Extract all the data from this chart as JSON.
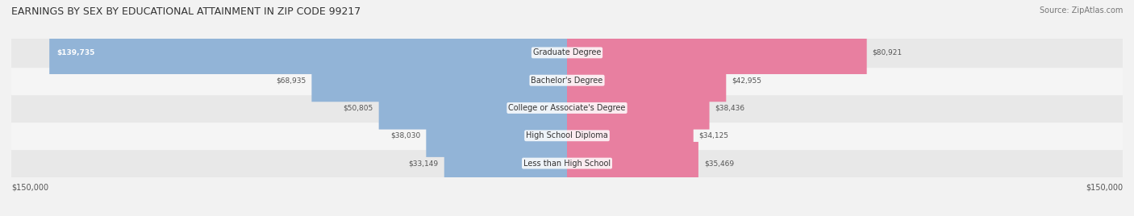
{
  "title": "EARNINGS BY SEX BY EDUCATIONAL ATTAINMENT IN ZIP CODE 99217",
  "source": "Source: ZipAtlas.com",
  "categories": [
    "Less than High School",
    "High School Diploma",
    "College or Associate's Degree",
    "Bachelor's Degree",
    "Graduate Degree"
  ],
  "male_values": [
    33149,
    38030,
    50805,
    68935,
    139735
  ],
  "female_values": [
    35469,
    34125,
    38436,
    42955,
    80921
  ],
  "max_value": 150000,
  "male_color": "#92b4d7",
  "female_color": "#e87fa0",
  "male_label_color": "#5a7fa8",
  "female_label_color": "#c45a7a",
  "bar_height": 0.55,
  "background_color": "#f0f0f0",
  "row_bg_colors": [
    "#e8e8e8",
    "#f5f5f5"
  ],
  "legend_male_color": "#7aa8d0",
  "legend_female_color": "#e07090",
  "x_label_left": "$150,000",
  "x_label_right": "$150,000"
}
